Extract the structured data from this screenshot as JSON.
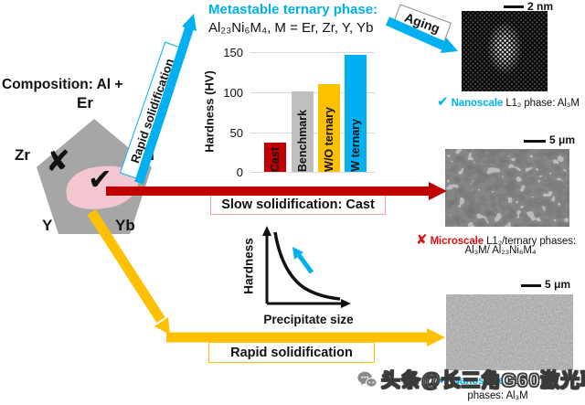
{
  "colors": {
    "cyan": "#00B0F0",
    "dark_red": "#C00000",
    "bright_red": "#DD1111",
    "amber": "#FFC000",
    "pentagon_gray": "#A6A6A6",
    "bar_gray": "#BFBFBF",
    "blob_pink": "#F4C6D0",
    "grid_gray": "#D9D9D9"
  },
  "header": {
    "title_line1": "Metastable ternary phase:",
    "title_line2": "Al₂₃Ni₆M₄, M = Er, Zr, Y, Yb",
    "aging_label": "Aging"
  },
  "composition": {
    "label": "Composition: Al +",
    "pentagon_elements": {
      "top": "Er",
      "left": "Zr",
      "right": "Ni",
      "bottom_left": "Y",
      "bottom_right": "Yb"
    },
    "check_mark": "✔",
    "cross_mark": "✘"
  },
  "flow_labels": {
    "rapid_diagonal": "Rapid solidification",
    "slow_box": "Slow solidification: Cast",
    "rapid_box": "Rapid solidification"
  },
  "chart_data": [
    {
      "type": "bar",
      "ylabel": "Hardness (HV)",
      "categories": [
        "Cast",
        "Benchmark",
        "W/O ternary",
        "W ternary"
      ],
      "values": [
        37,
        101,
        110,
        147
      ],
      "bar_colors": [
        "#C00000",
        "#BFBFBF",
        "#FFC000",
        "#00B0F0"
      ],
      "ylim": [
        0,
        150
      ],
      "yticks": [
        0,
        50,
        100,
        150
      ],
      "ytick_labels": [
        "150",
        "100",
        "50",
        "0"
      ],
      "grid": true,
      "legend": false
    },
    {
      "type": "line",
      "ylabel": "Hardness",
      "xlabel": "Precipitate size",
      "description": "Qualitative decreasing convex curve; cyan arrow points up-left showing hardness rises as precipitate size shrinks",
      "x": [
        0,
        0.2,
        0.4,
        0.6,
        0.8,
        1
      ],
      "y": [
        1,
        0.55,
        0.32,
        0.18,
        0.1,
        0.07
      ]
    }
  ],
  "micrographs": {
    "tem": {
      "scale_bar": "2 nm",
      "mark": "✔",
      "keyword": "Nanoscale",
      "caption": "L1₂ phase: Al₃M"
    },
    "cast_sem": {
      "scale_bar": "5 μm",
      "mark": "✘",
      "keyword": "Microscale",
      "caption": "L1₂/ternary phases:",
      "caption_line2": "Al₃M/ Al₂₃Ni₆M₄"
    },
    "rs_sem": {
      "scale_bar": "5 μm",
      "mark": "✔",
      "keyword": "Nanoscale",
      "caption": "L1₂/ternary",
      "caption_line2": "phases: Al₃M"
    }
  },
  "watermark": {
    "text": "头条@长三角G60激光联盟"
  }
}
